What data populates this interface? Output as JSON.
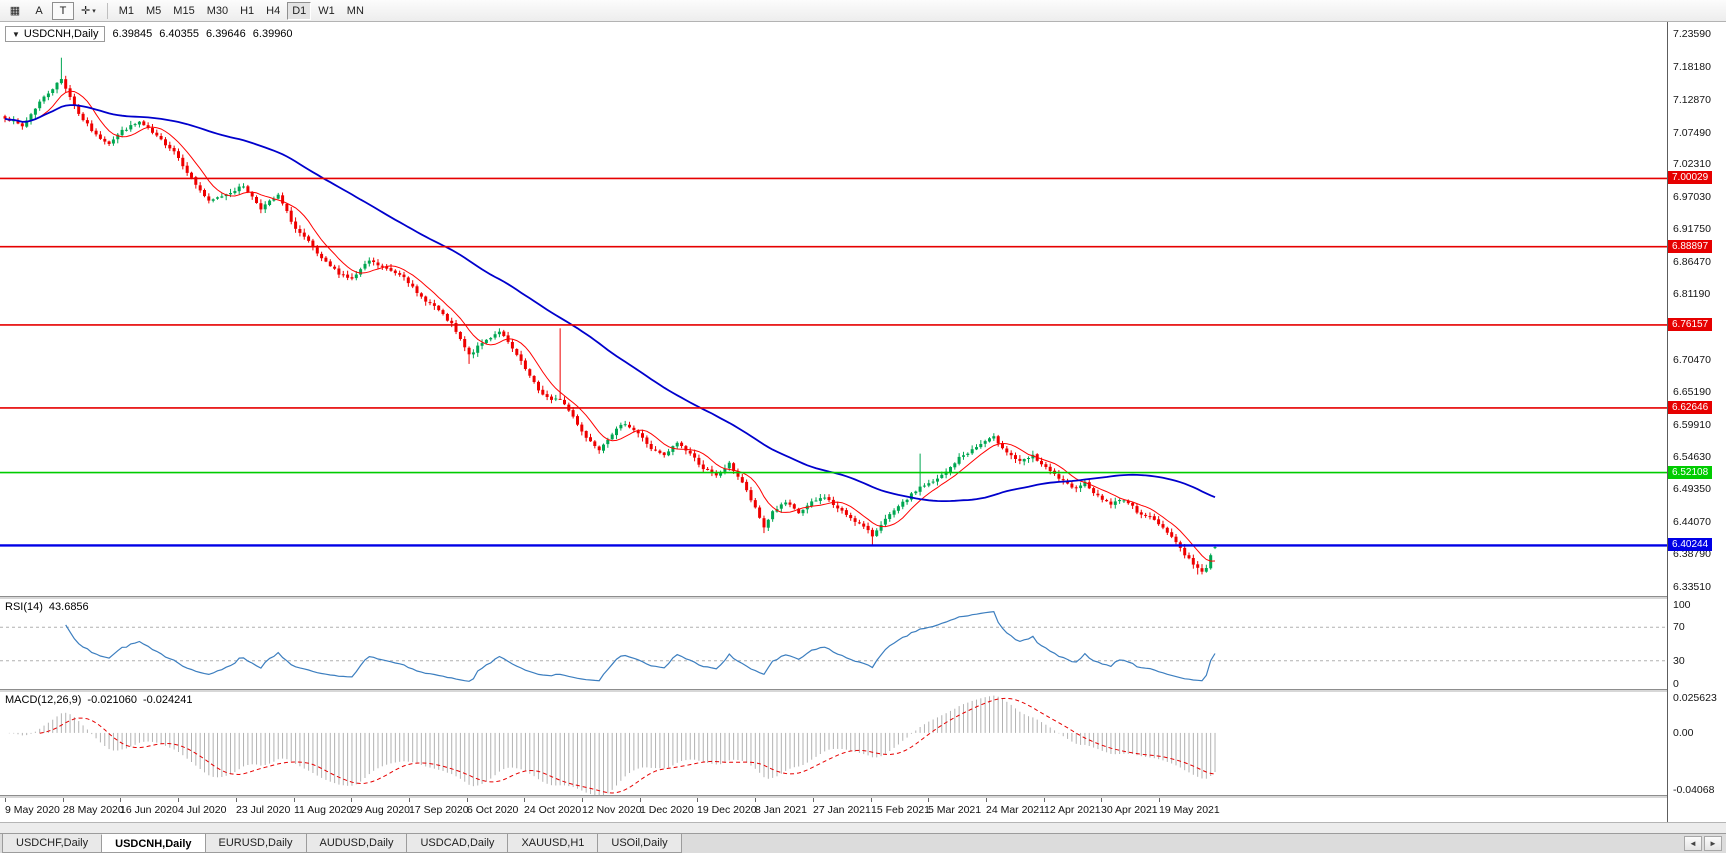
{
  "icons": {
    "symbol_collapse": "▼",
    "dropdown_caret": "▾",
    "tab_scroll_left": "◄",
    "tab_scroll_right": "►"
  },
  "colors": {
    "candle_up": "#00a651",
    "candle_down": "#ee0000",
    "ma_fast": "#ff0000",
    "ma_slow": "#0000cc",
    "rsi_line": "#3c7ebf",
    "rsi_level_dash": "#b0b0b0",
    "macd_hist": "#b2b2b2",
    "macd_signal": "#e60000"
  },
  "toolbar": {
    "tools": [
      {
        "name": "charts-menu",
        "glyph": "▦",
        "boxed": false,
        "caret": false
      },
      {
        "name": "annotation-tool",
        "glyph": "A",
        "boxed": false,
        "caret": false
      },
      {
        "name": "text-tool",
        "glyph": "T",
        "boxed": true,
        "caret": false
      },
      {
        "name": "crosshair-tool",
        "glyph": "✛",
        "boxed": false,
        "caret": true
      }
    ],
    "timeframes": [
      "M1",
      "M5",
      "M15",
      "M30",
      "H1",
      "H4",
      "D1",
      "W1",
      "MN"
    ],
    "active_timeframe": "D1"
  },
  "chart": {
    "symbol_label": "USDCNH,Daily",
    "ohlc_display": [
      "6.39845",
      "6.40355",
      "6.39646",
      "6.39960"
    ]
  },
  "panels": {
    "rsi_label": "RSI(14)",
    "rsi_value": "43.6856",
    "macd_label": "MACD(12,26,9)",
    "macd_value": "-0.021060",
    "macd_signal_value": "-0.024241"
  },
  "tabs": {
    "items": [
      {
        "label": "USDCHF,Daily",
        "active": false
      },
      {
        "label": "USDCNH,Daily",
        "active": true
      },
      {
        "label": "EURUSD,Daily",
        "active": false
      },
      {
        "label": "AUDUSD,Daily",
        "active": false
      },
      {
        "label": "USDCAD,Daily",
        "active": false
      },
      {
        "label": "XAUUSD,H1",
        "active": false
      },
      {
        "label": "USOil,Daily",
        "active": false
      }
    ]
  },
  "chart_data": {
    "type": "candlestick",
    "symbol": "USDCNH",
    "timeframe": "Daily",
    "current_ohlc": {
      "open": 6.39845,
      "high": 6.40355,
      "low": 6.39646,
      "close": 6.3996
    },
    "price_scale": {
      "top": 7.255,
      "bottom": 6.32
    },
    "price_axis_labels": [
      "7.23590",
      "7.18180",
      "7.12870",
      "7.07490",
      "7.02310",
      "6.97030",
      "6.91750",
      "6.86470",
      "6.81190",
      "6.75910",
      "6.70470",
      "6.65190",
      "6.59910",
      "6.54630",
      "6.49350",
      "6.44070",
      "6.38790",
      "6.33510"
    ],
    "dates": [
      "9 May 2020",
      "28 May 2020",
      "16 Jun 2020",
      "4 Jul 2020",
      "23 Jul 2020",
      "11 Aug 2020",
      "29 Aug 2020",
      "17 Sep 2020",
      "6 Oct 2020",
      "24 Oct 2020",
      "12 Nov 2020",
      "1 Dec 2020",
      "19 Dec 2020",
      "8 Jan 2021",
      "27 Jan 2021",
      "15 Feb 2021",
      "5 Mar 2021",
      "24 Mar 2021",
      "12 Apr 2021",
      "30 Apr 2021",
      "19 May 2021"
    ],
    "n_candles": 280,
    "seed": 7,
    "noise": 0.005,
    "wick": 0.006,
    "close_anchors": [
      [
        0,
        7.1
      ],
      [
        4,
        7.085
      ],
      [
        8,
        7.125
      ],
      [
        13,
        7.162
      ],
      [
        17,
        7.105
      ],
      [
        21,
        7.07
      ],
      [
        24,
        7.058
      ],
      [
        27,
        7.078
      ],
      [
        31,
        7.092
      ],
      [
        35,
        7.068
      ],
      [
        39,
        7.045
      ],
      [
        43,
        7.0
      ],
      [
        47,
        6.962
      ],
      [
        51,
        6.975
      ],
      [
        55,
        6.988
      ],
      [
        59,
        6.952
      ],
      [
        63,
        6.972
      ],
      [
        67,
        6.918
      ],
      [
        70,
        6.896
      ],
      [
        73,
        6.868
      ],
      [
        77,
        6.846
      ],
      [
        80,
        6.836
      ],
      [
        84,
        6.866
      ],
      [
        88,
        6.852
      ],
      [
        92,
        6.842
      ],
      [
        95,
        6.812
      ],
      [
        99,
        6.792
      ],
      [
        103,
        6.762
      ],
      [
        107,
        6.712
      ],
      [
        110,
        6.732
      ],
      [
        114,
        6.752
      ],
      [
        118,
        6.712
      ],
      [
        123,
        6.655
      ],
      [
        126,
        6.638
      ],
      [
        128,
        6.642
      ],
      [
        131,
        6.612
      ],
      [
        134,
        6.578
      ],
      [
        137,
        6.56
      ],
      [
        140,
        6.585
      ],
      [
        143,
        6.602
      ],
      [
        146,
        6.585
      ],
      [
        149,
        6.56
      ],
      [
        152,
        6.548
      ],
      [
        155,
        6.57
      ],
      [
        158,
        6.552
      ],
      [
        161,
        6.528
      ],
      [
        164,
        6.515
      ],
      [
        167,
        6.535
      ],
      [
        170,
        6.505
      ],
      [
        173,
        6.462
      ],
      [
        175,
        6.432
      ],
      [
        177,
        6.458
      ],
      [
        180,
        6.472
      ],
      [
        183,
        6.455
      ],
      [
        186,
        6.472
      ],
      [
        189,
        6.482
      ],
      [
        192,
        6.462
      ],
      [
        195,
        6.448
      ],
      [
        198,
        6.432
      ],
      [
        200,
        6.418
      ],
      [
        202,
        6.438
      ],
      [
        205,
        6.458
      ],
      [
        208,
        6.478
      ],
      [
        211,
        6.498
      ],
      [
        214,
        6.505
      ],
      [
        217,
        6.522
      ],
      [
        220,
        6.545
      ],
      [
        223,
        6.558
      ],
      [
        226,
        6.572
      ],
      [
        228,
        6.578
      ],
      [
        231,
        6.555
      ],
      [
        234,
        6.538
      ],
      [
        237,
        6.548
      ],
      [
        240,
        6.528
      ],
      [
        243,
        6.512
      ],
      [
        246,
        6.495
      ],
      [
        249,
        6.505
      ],
      [
        252,
        6.482
      ],
      [
        255,
        6.47
      ],
      [
        258,
        6.478
      ],
      [
        261,
        6.458
      ],
      [
        264,
        6.448
      ],
      [
        266,
        6.438
      ],
      [
        268,
        6.425
      ],
      [
        270,
        6.408
      ],
      [
        272,
        6.388
      ],
      [
        274,
        6.372
      ],
      [
        276,
        6.358
      ],
      [
        277,
        6.368
      ],
      [
        278,
        6.388
      ],
      [
        279,
        6.3996
      ]
    ],
    "wick_events": [
      {
        "i": 13,
        "high": 7.1968
      },
      {
        "i": 107,
        "low": 6.698
      },
      {
        "i": 128,
        "high": 6.756
      },
      {
        "i": 175,
        "low": 6.4225
      },
      {
        "i": 200,
        "low": 6.4035
      },
      {
        "i": 211,
        "high": 6.552
      },
      {
        "i": 275,
        "low": 6.3551
      }
    ],
    "hlines": [
      {
        "value": 7.00029,
        "label": "7.00029",
        "color": "#e60000",
        "width": 1.6
      },
      {
        "value": 6.88897,
        "label": "6.88897",
        "color": "#e60000",
        "width": 1.6
      },
      {
        "value": 6.76157,
        "label": "6.76157",
        "color": "#e60000",
        "width": 1.6
      },
      {
        "value": 6.62646,
        "label": "6.62646",
        "color": "#e60000",
        "width": 1.6
      },
      {
        "value": 6.52108,
        "label": "6.52108",
        "color": "#00cc00",
        "width": 1.6
      },
      {
        "value": 6.40244,
        "label": "6.40244",
        "color": "#0000e6",
        "width": 2.4
      }
    ],
    "moving_averages": [
      {
        "period": 8,
        "color": "#ff0000",
        "width": 1
      },
      {
        "period": 55,
        "color": "#0000cc",
        "width": 1.8
      }
    ],
    "rsi": {
      "period": 14,
      "current": 43.6856,
      "levels": [
        70,
        30
      ],
      "range": [
        0,
        100
      ],
      "axis_labels": [
        "100",
        "70",
        "30",
        "0"
      ]
    },
    "macd": {
      "fast": 12,
      "slow": 26,
      "signal": 9,
      "current": -0.02106,
      "current_signal": -0.024241,
      "range": [
        -0.04068,
        0.025623
      ],
      "axis_labels": [
        "0.025623",
        "0.00",
        "-0.04068"
      ]
    }
  }
}
